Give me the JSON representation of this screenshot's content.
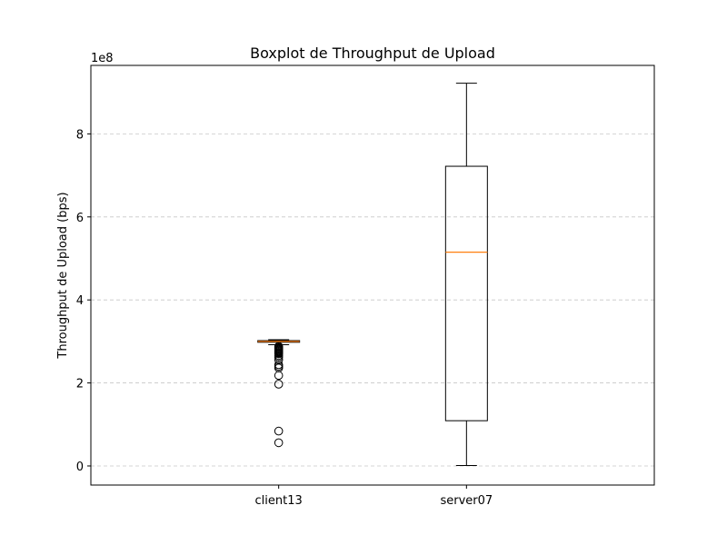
{
  "chart_data": {
    "type": "boxplot",
    "title": "Boxplot de Throughput de Upload",
    "xlabel": "",
    "ylabel": "Throughput de Upload (bps)",
    "y_offset_label": "1e8",
    "y_scale_factor": 100000000,
    "ylim": [
      -0.46,
      9.65
    ],
    "yticks": [
      0,
      2,
      4,
      6,
      8
    ],
    "ytick_labels": [
      "0",
      "2",
      "4",
      "6",
      "8"
    ],
    "grid": "y-dashed",
    "categories": [
      "client13",
      "server07"
    ],
    "boxes": [
      {
        "name": "client13",
        "whisker_low": 2.92,
        "q1": 2.98,
        "median": 3.0,
        "q3": 3.02,
        "whisker_high": 3.04,
        "outliers": [
          2.88,
          2.86,
          2.84,
          2.82,
          2.8,
          2.78,
          2.76,
          2.74,
          2.72,
          2.7,
          2.66,
          2.62,
          2.56,
          2.44,
          2.4,
          2.36,
          2.18,
          1.97,
          0.84,
          0.56
        ]
      },
      {
        "name": "server07",
        "whisker_low": 0.01,
        "q1": 1.09,
        "median": 5.15,
        "q3": 7.22,
        "whisker_high": 9.22,
        "outliers": []
      }
    ],
    "colors": {
      "box": "#000000",
      "median": "#ff7f0e",
      "grid": "#c8c8c8"
    }
  }
}
